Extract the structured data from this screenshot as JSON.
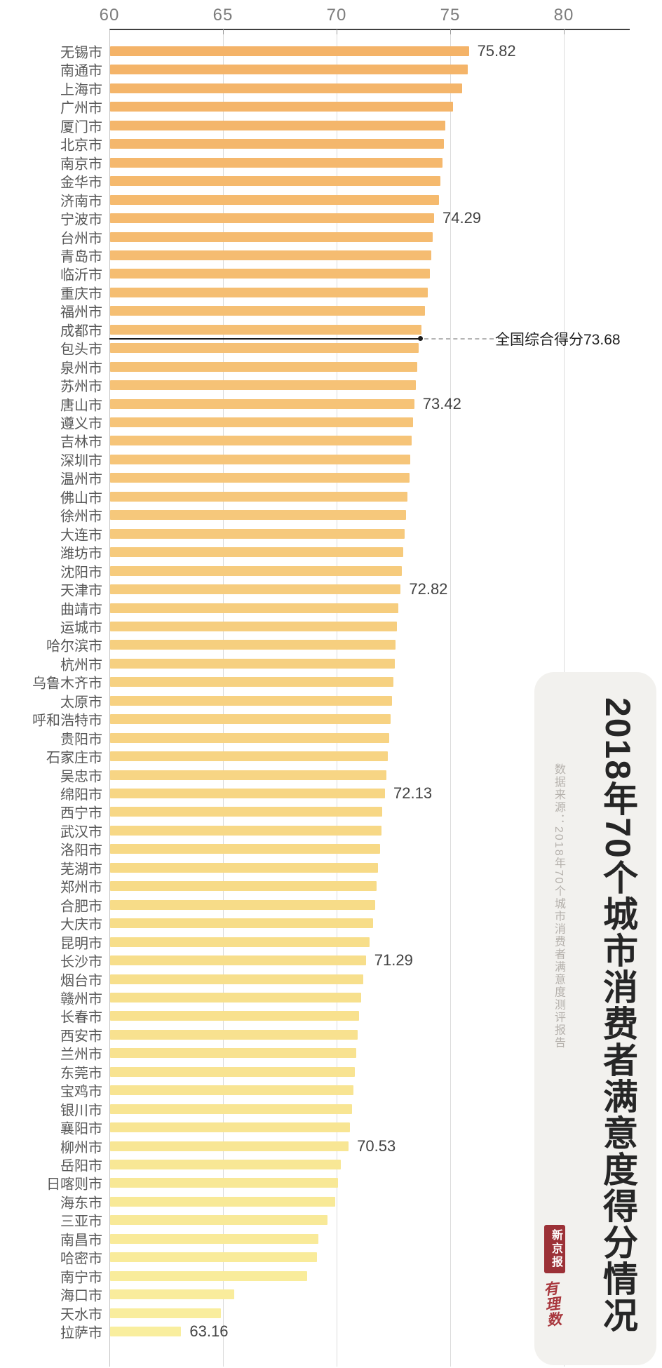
{
  "chart_data": {
    "type": "bar",
    "orientation": "horizontal",
    "title": "2018年70个城市消费者满意度得分情况",
    "source": "数据来源：2018年70个城市消费者满意度测评报告",
    "x_ticks": [
      60,
      65,
      70,
      75,
      80
    ],
    "x_range": [
      60,
      82.9
    ],
    "grid": true,
    "reference": {
      "label": "全国综合得分73.68",
      "value": 73.68,
      "after_row": 16
    },
    "cities": [
      {
        "name": "无锡市",
        "value": 75.82,
        "label": "75.82"
      },
      {
        "name": "南通市",
        "value": 75.76
      },
      {
        "name": "上海市",
        "value": 75.52
      },
      {
        "name": "广州市",
        "value": 75.12
      },
      {
        "name": "厦门市",
        "value": 74.78
      },
      {
        "name": "北京市",
        "value": 74.72
      },
      {
        "name": "南京市",
        "value": 74.65
      },
      {
        "name": "金华市",
        "value": 74.58
      },
      {
        "name": "济南市",
        "value": 74.5
      },
      {
        "name": "宁波市",
        "value": 74.29,
        "label": "74.29"
      },
      {
        "name": "台州市",
        "value": 74.24
      },
      {
        "name": "青岛市",
        "value": 74.18
      },
      {
        "name": "临沂市",
        "value": 74.12
      },
      {
        "name": "重庆市",
        "value": 74.02
      },
      {
        "name": "福州市",
        "value": 73.9
      },
      {
        "name": "成都市",
        "value": 73.72
      },
      {
        "name": "包头市",
        "value": 73.62
      },
      {
        "name": "泉州市",
        "value": 73.56
      },
      {
        "name": "苏州市",
        "value": 73.5
      },
      {
        "name": "唐山市",
        "value": 73.42,
        "label": "73.42"
      },
      {
        "name": "遵义市",
        "value": 73.36
      },
      {
        "name": "吉林市",
        "value": 73.3
      },
      {
        "name": "深圳市",
        "value": 73.25
      },
      {
        "name": "温州市",
        "value": 73.2
      },
      {
        "name": "佛山市",
        "value": 73.12
      },
      {
        "name": "徐州市",
        "value": 73.06
      },
      {
        "name": "大连市",
        "value": 73.0
      },
      {
        "name": "潍坊市",
        "value": 72.94
      },
      {
        "name": "沈阳市",
        "value": 72.88
      },
      {
        "name": "天津市",
        "value": 72.82,
        "label": "72.82"
      },
      {
        "name": "曲靖市",
        "value": 72.72
      },
      {
        "name": "运城市",
        "value": 72.66
      },
      {
        "name": "哈尔滨市",
        "value": 72.6
      },
      {
        "name": "杭州市",
        "value": 72.55
      },
      {
        "name": "乌鲁木齐市",
        "value": 72.5
      },
      {
        "name": "太原市",
        "value": 72.44
      },
      {
        "name": "呼和浩特市",
        "value": 72.38
      },
      {
        "name": "贵阳市",
        "value": 72.32
      },
      {
        "name": "石家庄市",
        "value": 72.26
      },
      {
        "name": "吴忠市",
        "value": 72.2
      },
      {
        "name": "绵阳市",
        "value": 72.13,
        "label": "72.13"
      },
      {
        "name": "西宁市",
        "value": 72.02
      },
      {
        "name": "武汉市",
        "value": 71.96
      },
      {
        "name": "洛阳市",
        "value": 71.9
      },
      {
        "name": "芜湖市",
        "value": 71.82
      },
      {
        "name": "郑州市",
        "value": 71.76
      },
      {
        "name": "合肥市",
        "value": 71.7
      },
      {
        "name": "大庆市",
        "value": 71.6
      },
      {
        "name": "昆明市",
        "value": 71.45
      },
      {
        "name": "长沙市",
        "value": 71.29,
        "label": "71.29"
      },
      {
        "name": "烟台市",
        "value": 71.18
      },
      {
        "name": "赣州市",
        "value": 71.08
      },
      {
        "name": "长春市",
        "value": 71.0
      },
      {
        "name": "西安市",
        "value": 70.94
      },
      {
        "name": "兰州市",
        "value": 70.86
      },
      {
        "name": "东莞市",
        "value": 70.8
      },
      {
        "name": "宝鸡市",
        "value": 70.74
      },
      {
        "name": "银川市",
        "value": 70.68
      },
      {
        "name": "襄阳市",
        "value": 70.6
      },
      {
        "name": "柳州市",
        "value": 70.53,
        "label": "70.53"
      },
      {
        "name": "岳阳市",
        "value": 70.2
      },
      {
        "name": "日喀则市",
        "value": 70.05
      },
      {
        "name": "海东市",
        "value": 69.95
      },
      {
        "name": "三亚市",
        "value": 69.6
      },
      {
        "name": "南昌市",
        "value": 69.2
      },
      {
        "name": "哈密市",
        "value": 69.15
      },
      {
        "name": "南宁市",
        "value": 68.7
      },
      {
        "name": "海口市",
        "value": 65.5
      },
      {
        "name": "天水市",
        "value": 64.9
      },
      {
        "name": "拉萨市",
        "value": 63.16,
        "label": "63.16"
      }
    ]
  },
  "branding": {
    "newspaper_logo": "新京报",
    "column_logo": "有理数"
  },
  "colors": {
    "bar_gradient_stops": [
      "#F4B368",
      "#F6C67A",
      "#F7DC88",
      "#F9EE9E"
    ],
    "axis_line": "#3f3f3f",
    "gridline": "#dcdcdc",
    "tick_text": "#7d7d7d",
    "city_text": "#585858",
    "value_text": "#424242",
    "reference_line": "#1c1c1c",
    "panel_background": "#f2f1ee",
    "logo_red": "#9c3137"
  }
}
